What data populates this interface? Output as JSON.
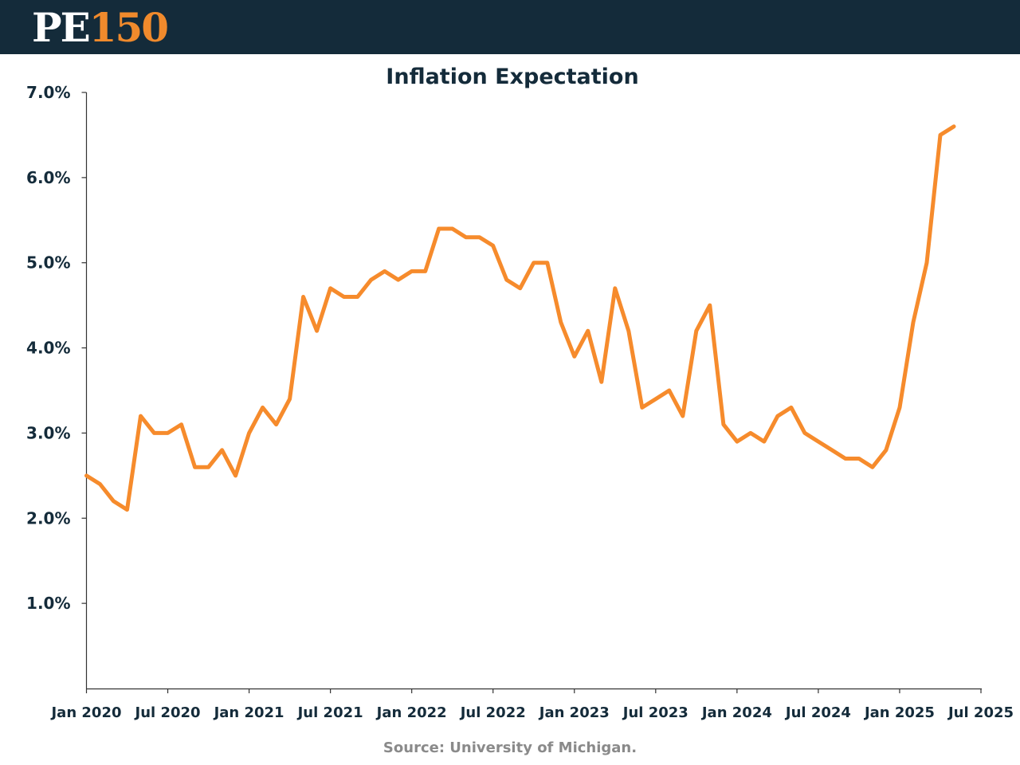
{
  "header": {
    "logo_letters": "PE",
    "logo_number": "150",
    "brand_dark": "#142b3a",
    "brand_accent": "#f08a2c"
  },
  "source": "Source: University of Michigan.",
  "chart_data": {
    "type": "line",
    "title": "Inflation Expectation",
    "xlabel": "",
    "ylabel": "",
    "ylim": [
      0,
      7
    ],
    "yticks": [
      1,
      2,
      3,
      4,
      5,
      6,
      7
    ],
    "ytick_labels": [
      "1.0%",
      "2.0%",
      "3.0%",
      "4.0%",
      "5.0%",
      "6.0%",
      "7.0%"
    ],
    "xlim": [
      0,
      66
    ],
    "xticks": [
      0,
      6,
      12,
      18,
      24,
      30,
      36,
      42,
      48,
      54,
      60,
      66
    ],
    "xtick_labels": [
      "Jan 2020",
      "Jul 2020",
      "Jan 2021",
      "Jul 2021",
      "Jan 2022",
      "Jul 2022",
      "Jan 2023",
      "Jul 2023",
      "Jan 2024",
      "Jul 2024",
      "Jan 2025",
      "Jul 2025"
    ],
    "grid": false,
    "line_color": "#f68b2c",
    "series": [
      {
        "name": "Inflation Expectation",
        "values": [
          2.5,
          2.4,
          2.2,
          2.1,
          3.2,
          3.0,
          3.0,
          3.1,
          2.6,
          2.6,
          2.8,
          2.5,
          3.0,
          3.3,
          3.1,
          3.4,
          4.6,
          4.2,
          4.7,
          4.6,
          4.6,
          4.8,
          4.9,
          4.8,
          4.9,
          4.9,
          5.4,
          5.4,
          5.3,
          5.3,
          5.2,
          4.8,
          4.7,
          5.0,
          5.0,
          4.3,
          3.9,
          4.2,
          3.6,
          4.7,
          4.2,
          3.3,
          3.4,
          3.5,
          3.2,
          4.2,
          4.5,
          3.1,
          2.9,
          3.0,
          2.9,
          3.2,
          3.3,
          3.0,
          2.9,
          2.8,
          2.7,
          2.7,
          2.6,
          2.8,
          3.3,
          4.3,
          5.0,
          6.5,
          6.6
        ]
      }
    ]
  }
}
